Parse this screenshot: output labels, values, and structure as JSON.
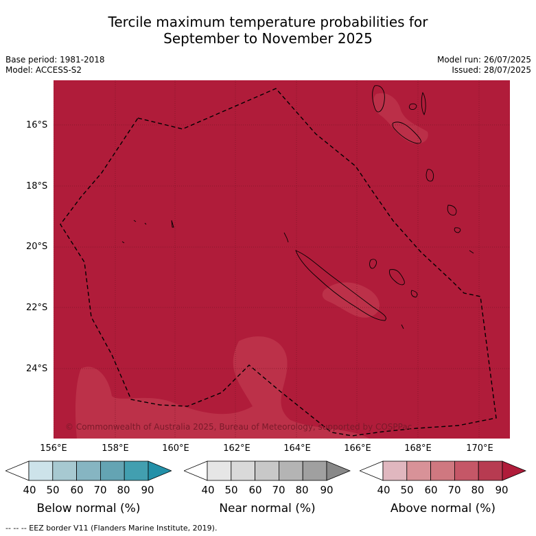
{
  "title": {
    "line1": "Tercile maximum temperature probabilities for",
    "line2": "September to November 2025"
  },
  "meta": {
    "base_period": "Base period: 1981-2018",
    "model": "Model: ACCESS-S2",
    "model_run": "Model run: 26/07/2025",
    "issued": "Issued: 28/07/2025"
  },
  "axes": {
    "lat_labels": [
      "16°S",
      "18°S",
      "20°S",
      "22°S",
      "24°S"
    ],
    "lon_labels": [
      "156°E",
      "158°E",
      "160°E",
      "162°E",
      "164°E",
      "166°E",
      "168°E",
      "170°E"
    ]
  },
  "colorbars": {
    "ticks": [
      "40",
      "50",
      "60",
      "70",
      "80",
      "90"
    ],
    "below": {
      "label": "Below normal (%)",
      "colors": [
        "#ffffff",
        "#cde3ea",
        "#a7c9d1",
        "#86b5c2",
        "#64a4b3",
        "#429fb0",
        "#2390a8"
      ]
    },
    "near": {
      "label": "Near normal (%)",
      "colors": [
        "#ffffff",
        "#e6e6e6",
        "#d9d9d9",
        "#c8c8c8",
        "#b4b4b4",
        "#a0a0a0",
        "#888888"
      ]
    },
    "above": {
      "label": "Above normal (%)",
      "colors": [
        "#ffffff",
        "#e0b7bf",
        "#d89298",
        "#cf7880",
        "#c55767",
        "#b73b51",
        "#b01c3a"
      ]
    }
  },
  "map": {
    "background_color": "#b01c3a",
    "lighter_patch_color": "#c0384f",
    "copyright": "© Commonwealth of Australia 2025, Bureau of Meteorology, supported by COSPPac"
  },
  "footer": {
    "eez_note": "-- -- -- EEZ border V11 (Flanders Marine Institute, 2019)."
  }
}
